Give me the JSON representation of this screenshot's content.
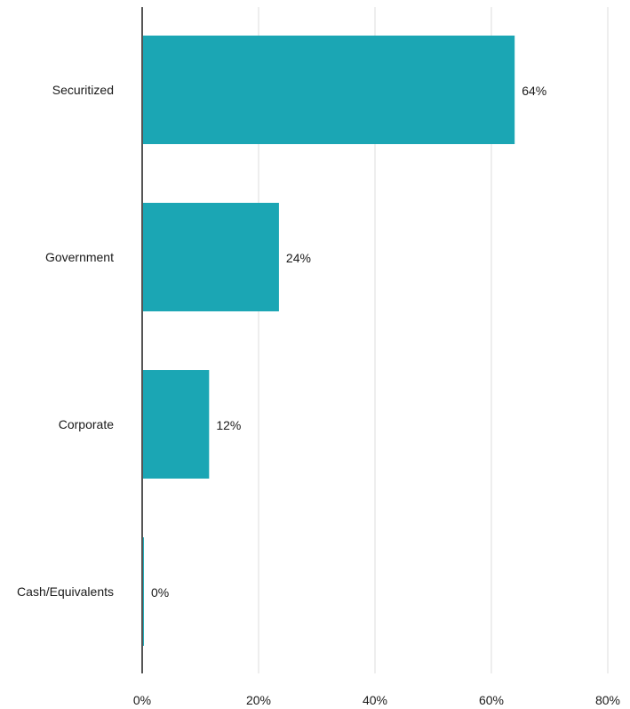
{
  "chart_data": {
    "type": "bar",
    "orientation": "horizontal",
    "categories": [
      "Securitized",
      "Government",
      "Corporate",
      "Cash/Equivalents"
    ],
    "values": [
      64,
      23.5,
      11.5,
      0.3
    ],
    "value_labels": [
      "64%",
      "24%",
      "12%",
      "0%"
    ],
    "xlim": [
      0,
      80
    ],
    "xticks": [
      0,
      20,
      40,
      60,
      80
    ],
    "xtick_labels": [
      "0%",
      "20%",
      "40%",
      "60%",
      "80%"
    ],
    "title": "",
    "xlabel": "",
    "ylabel": "",
    "grid": "vertical",
    "bar_color": "#1ba6b4",
    "grid_color": "#dcdcdc",
    "axis_color": "#555555"
  }
}
